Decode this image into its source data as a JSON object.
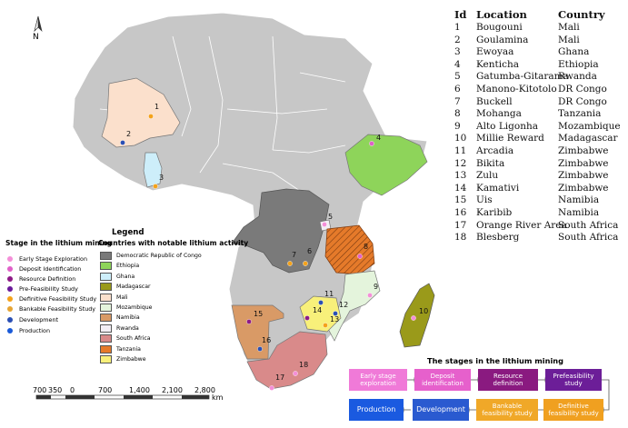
{
  "north_label": "N",
  "table": {
    "headers": {
      "id": "Id",
      "location": "Location",
      "country": "Country"
    },
    "rows": [
      {
        "id": "1",
        "location": "Bougouni",
        "country": "Mali"
      },
      {
        "id": "2",
        "location": "Goulamina",
        "country": "Mali"
      },
      {
        "id": "3",
        "location": "Ewoyaa",
        "country": "Ghana"
      },
      {
        "id": "4",
        "location": "Kenticha",
        "country": "Ethiopia"
      },
      {
        "id": "5",
        "location": "Gatumba-Gitarama",
        "country": "Rwanda"
      },
      {
        "id": "6",
        "location": "Manono-Kitotolo",
        "country": "DR Congo"
      },
      {
        "id": "7",
        "location": "Buckell",
        "country": "DR Congo"
      },
      {
        "id": "8",
        "location": "Mohanga",
        "country": "Tanzania"
      },
      {
        "id": "9",
        "location": "Alto Ligonha",
        "country": "Mozambique"
      },
      {
        "id": "10",
        "location": "Millie Reward",
        "country": "Madagascar"
      },
      {
        "id": "11",
        "location": "Arcadia",
        "country": "Zimbabwe"
      },
      {
        "id": "12",
        "location": "Bikita",
        "country": "Zimbabwe"
      },
      {
        "id": "13",
        "location": "Zulu",
        "country": "Zimbabwe"
      },
      {
        "id": "14",
        "location": "Kamativi",
        "country": "Zimbabwe"
      },
      {
        "id": "15",
        "location": "Uis",
        "country": "Namibia"
      },
      {
        "id": "16",
        "location": "Karibib",
        "country": "Namibia"
      },
      {
        "id": "17",
        "location": "Orange River Area",
        "country": "South Africa"
      },
      {
        "id": "18",
        "location": "Blesberg",
        "country": "South Africa"
      }
    ]
  },
  "legend": {
    "title": "Legend",
    "stage_title": "Stage in the lithium mining",
    "stages": [
      {
        "label": "Early Stage Exploration",
        "color": "#f48fd8"
      },
      {
        "label": "Deposit Identification",
        "color": "#e060c8"
      },
      {
        "label": "Resource Definition",
        "color": "#8e1a86"
      },
      {
        "label": "Pre-Feasibility Study",
        "color": "#6a1a9a"
      },
      {
        "label": "Definitive Feasibility Study",
        "color": "#f4a21a"
      },
      {
        "label": "Bankable Feasibility Study",
        "color": "#e6a434"
      },
      {
        "label": "Development",
        "color": "#2a4fb4"
      },
      {
        "label": "Production",
        "color": "#1a5ad8"
      }
    ],
    "countries_title": "Countries with notable lithium activity",
    "countries": [
      {
        "label": "Democratic Republic of Congo",
        "color": "#7a7a7a"
      },
      {
        "label": "Ethiopia",
        "color": "#8ed45a"
      },
      {
        "label": "Ghana",
        "color": "#cdeefa"
      },
      {
        "label": "Madagascar",
        "color": "#9a9a1a"
      },
      {
        "label": "Mali",
        "color": "#fbe0cc"
      },
      {
        "label": "Mozambique",
        "color": "#e4f4dc"
      },
      {
        "label": "Namibia",
        "color": "#d99a66"
      },
      {
        "label": "Rwanda",
        "color": "#f2eef4"
      },
      {
        "label": "South Africa",
        "color": "#d98a8a"
      },
      {
        "label": "Tanzania",
        "color": "#e57a2a"
      },
      {
        "label": "Zimbabwe",
        "color": "#f8f07a"
      }
    ]
  },
  "flow": {
    "title": "The stages in the lithium mining",
    "steps": [
      {
        "label": "Early stage exploration",
        "color": "#f07ad8"
      },
      {
        "label": "Deposit identification",
        "color": "#e660cc"
      },
      {
        "label": "Resource definition",
        "color": "#8a1a80"
      },
      {
        "label": "Prefeasibility study",
        "color": "#6c1e98"
      },
      {
        "label": "Definitive feasibility study",
        "color": "#f0a020"
      },
      {
        "label": "Bankable feasibility study",
        "color": "#f0a828"
      },
      {
        "label": "Development",
        "color": "#2a5ad0"
      },
      {
        "label": "Production",
        "color": "#1a5ae0"
      }
    ]
  },
  "scale_bar": {
    "labels": [
      "700",
      "350",
      "0",
      "700",
      "1,400",
      "2,100",
      "2,800"
    ],
    "unit": "km"
  },
  "sites": [
    {
      "id": "1",
      "stage_color": "#f4a21a"
    },
    {
      "id": "2",
      "stage_color": "#2a4fb4"
    },
    {
      "id": "3",
      "stage_color": "#f4a21a"
    },
    {
      "id": "4",
      "stage_color": "#e060c8"
    },
    {
      "id": "5",
      "stage_color": "#f48fd8"
    },
    {
      "id": "6",
      "stage_color": "#f4a21a"
    },
    {
      "id": "7",
      "stage_color": "#f4a21a"
    },
    {
      "id": "8",
      "stage_color": "#e060c8"
    },
    {
      "id": "9",
      "stage_color": "#f48fd8"
    },
    {
      "id": "10",
      "stage_color": "#f48fd8"
    },
    {
      "id": "11",
      "stage_color": "#2a4fb4"
    },
    {
      "id": "12",
      "stage_color": "#2a4fb4"
    },
    {
      "id": "13",
      "stage_color": "#f4a21a"
    },
    {
      "id": "14",
      "stage_color": "#8e1a86"
    },
    {
      "id": "15",
      "stage_color": "#8e1a86"
    },
    {
      "id": "16",
      "stage_color": "#2a4fb4"
    },
    {
      "id": "17",
      "stage_color": "#f48fd8"
    },
    {
      "id": "18",
      "stage_color": "#f48fd8"
    }
  ]
}
